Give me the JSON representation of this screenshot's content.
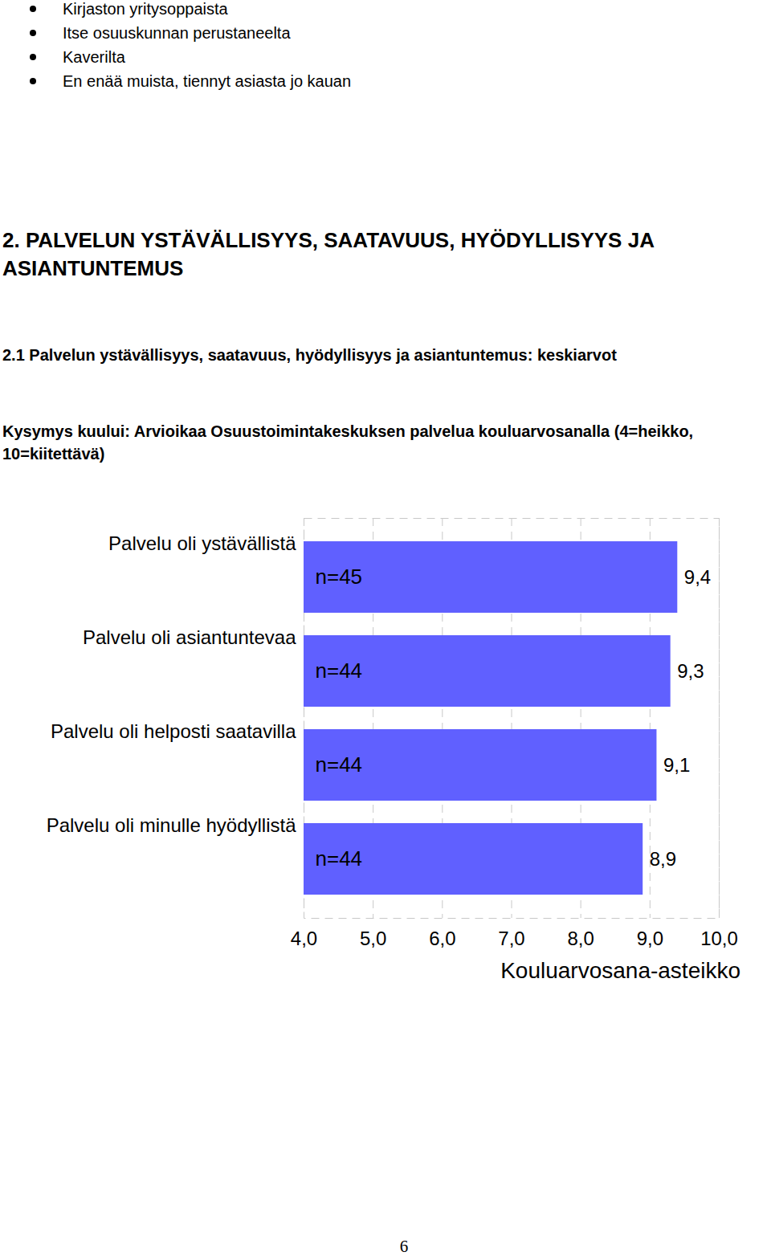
{
  "bullets": [
    "Kirjaston yritysoppaista",
    "Itse osuuskunnan perustaneelta",
    "Kaverilta",
    "En enää muista, tiennyt asiasta jo kauan"
  ],
  "heading": "2. PALVELUN YSTÄVÄLLISYYS, SAATAVUUS, HYÖDYLLISYYS JA ASIANTUNTEMUS",
  "page_number": "6",
  "chart_data": {
    "type": "bar",
    "orientation": "horizontal",
    "title": "2.1 Palvelun ystävällisyys, saatavuus, hyödyllisyys ja asiantuntemus: keskiarvot",
    "subtitle": "Kysymys kuului: Arvioikaa Osuustoimintakeskuksen palvelua kouluarvosanalla (4=heikko, 10=kiitettävä)",
    "categories": [
      "Palvelu oli ystävällistä",
      "Palvelu oli asiantuntevaa",
      "Palvelu oli helposti saatavilla",
      "Palvelu oli minulle hyödyllistä"
    ],
    "values": [
      9.4,
      9.3,
      9.1,
      8.9
    ],
    "value_labels": [
      "9,4",
      "9,3",
      "9,1",
      "8,9"
    ],
    "n_labels": [
      "n=45",
      "n=44",
      "n=44",
      "n=44"
    ],
    "data_labels": true,
    "color": "#6060ff",
    "xlabel": "Kouluarvosana-asteikko",
    "xlim": [
      4,
      10
    ],
    "xticks": [
      {
        "value": 4,
        "label": "4,0"
      },
      {
        "value": 5,
        "label": "5,0"
      },
      {
        "value": 6,
        "label": "6,0"
      },
      {
        "value": 7,
        "label": "7,0"
      },
      {
        "value": 8,
        "label": "8,0"
      },
      {
        "value": 9,
        "label": "9,0"
      },
      {
        "value": 10,
        "label": "10,0"
      }
    ],
    "grid": true
  }
}
